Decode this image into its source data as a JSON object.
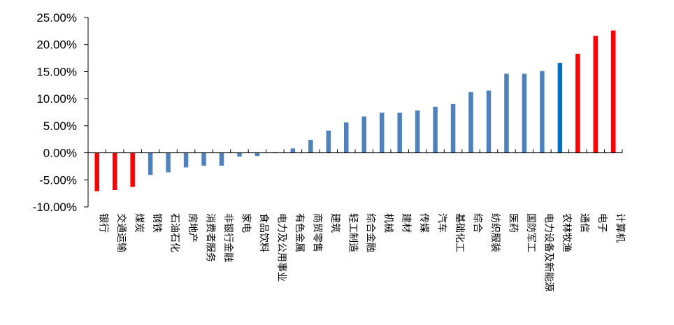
{
  "chart_data": {
    "type": "bar",
    "title": "",
    "xlabel": "",
    "ylabel": "",
    "ylim": [
      -10,
      25
    ],
    "yticks": [
      -10,
      -5,
      0,
      5,
      10,
      15,
      20,
      25
    ],
    "ytick_labels": [
      "-10.00%",
      "-5.00%",
      "0.00%",
      "5.00%",
      "10.00%",
      "15.00%",
      "20.00%",
      "25.00%"
    ],
    "grid": false,
    "legend": false,
    "categories": [
      "银行",
      "交通运输",
      "煤炭",
      "钢铁",
      "石油石化",
      "房地产",
      "消费者服务",
      "非银行金融",
      "家电",
      "食品饮料",
      "电力及公用事业",
      "有色金属",
      "商贸零售",
      "建筑",
      "轻工制造",
      "综合金融",
      "机械",
      "建材",
      "传媒",
      "汽车",
      "基础化工",
      "综合",
      "纺织服装",
      "医药",
      "国防军工",
      "电力设备及新能源",
      "农林牧渔",
      "通信",
      "电子",
      "计算机"
    ],
    "values": [
      -7.1,
      -6.9,
      -6.3,
      -4.1,
      -3.6,
      -2.7,
      -2.4,
      -2.4,
      -0.7,
      -0.6,
      0.1,
      0.8,
      2.4,
      4.1,
      5.6,
      6.7,
      7.4,
      7.4,
      7.8,
      8.5,
      9.0,
      11.2,
      11.5,
      14.6,
      14.6,
      15.1,
      16.6,
      18.3,
      21.6,
      22.6
    ],
    "colors": {
      "default": "#4f81bd",
      "highlight_negative": "#ff0000",
      "highlight_positive": "#ff0000",
      "highlight_blue": "#0070c0",
      "axis": "#000000"
    },
    "highlight_red_indices": [
      0,
      1,
      2,
      27,
      28,
      29
    ],
    "highlight_blue_indices": [
      26
    ]
  }
}
